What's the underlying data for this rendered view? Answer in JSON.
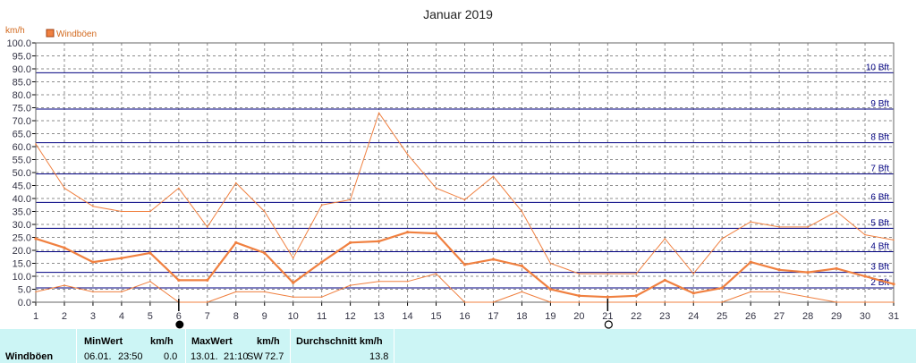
{
  "chart_data": {
    "type": "line",
    "title": "Januar 2019",
    "ylabel": "km/h",
    "ylim": [
      0,
      100
    ],
    "ytick_labels": [
      "0.0",
      "5.0",
      "10.0",
      "15.0",
      "20.0",
      "25.0",
      "30.0",
      "35.0",
      "40.0",
      "45.0",
      "50.0",
      "55.0",
      "60.0",
      "65.0",
      "70.0",
      "75.0",
      "80.0",
      "85.0",
      "90.0",
      "95.0",
      "100.0"
    ],
    "x": [
      1,
      2,
      3,
      4,
      5,
      6,
      7,
      8,
      9,
      10,
      11,
      12,
      13,
      14,
      15,
      16,
      17,
      18,
      19,
      20,
      21,
      22,
      23,
      24,
      25,
      26,
      27,
      28,
      29,
      30,
      31
    ],
    "xtick_labels": [
      "1",
      "2",
      "3",
      "4",
      "5",
      "6",
      "7",
      "8",
      "9",
      "10",
      "11",
      "12",
      "13",
      "14",
      "15",
      "16",
      "17",
      "18",
      "19",
      "20",
      "21",
      "22",
      "23",
      "24",
      "25",
      "26",
      "27",
      "28",
      "29",
      "30",
      "31"
    ],
    "legend": [
      "Windböen"
    ],
    "legend_position": "top-left",
    "grid": true,
    "series": [
      {
        "name": "Windböen",
        "role": "mean",
        "values": [
          24.5,
          21,
          15.5,
          17,
          19,
          8.5,
          8.5,
          23,
          19,
          7.5,
          15.5,
          23,
          23.5,
          27,
          26.5,
          14.5,
          16.5,
          14,
          5,
          2.5,
          2,
          2.5,
          8.5,
          3.5,
          5.5,
          15.5,
          12.5,
          11.5,
          13,
          10,
          7
        ]
      },
      {
        "name": "Windböen",
        "role": "max",
        "values": [
          61,
          44,
          37,
          35,
          35,
          44,
          29,
          46,
          35,
          17,
          37.5,
          39.5,
          73,
          57,
          44,
          39.5,
          48.5,
          35,
          15,
          11,
          11,
          11,
          24.5,
          11,
          24.5,
          31,
          29,
          29,
          35,
          26,
          24
        ]
      },
      {
        "name": "Windböen",
        "role": "min",
        "values": [
          4,
          6.5,
          4,
          4,
          8,
          0,
          0,
          4,
          4,
          2,
          2,
          6.5,
          8,
          8,
          11,
          0,
          0,
          4,
          0,
          0,
          0,
          0,
          0,
          0,
          0,
          4,
          4,
          2,
          0,
          0,
          0
        ]
      }
    ],
    "beaufort_lines": [
      {
        "label": "2 Bft",
        "value": 5.5
      },
      {
        "label": "3 Bft",
        "value": 11.5
      },
      {
        "label": "4 Bft",
        "value": 19.5
      },
      {
        "label": "5 Bft",
        "value": 28.5
      },
      {
        "label": "6 Bft",
        "value": 38.5
      },
      {
        "label": "7 Bft",
        "value": 49.5
      },
      {
        "label": "8 Bft",
        "value": 61.5
      },
      {
        "label": "9 Bft",
        "value": 74.5
      },
      {
        "label": "10 Bft",
        "value": 88.5
      }
    ],
    "moon_phases": [
      {
        "day": 6,
        "phase": "new"
      },
      {
        "day": 21,
        "phase": "full"
      }
    ]
  },
  "colors": {
    "series": "#f08040",
    "beaufort": "#000080",
    "grid": "#888888",
    "footer_bg": "#ccf5f5"
  },
  "footer": {
    "row_label": "Windböen",
    "min_header": "MinWert",
    "min_unit": "km/h",
    "min_date": "06.01.",
    "min_time": "23:50",
    "min_value": "0.0",
    "max_header": "MaxWert",
    "max_unit": "km/h",
    "max_date": "13.01.",
    "max_time": "21:10",
    "max_dir": "SW",
    "max_value": "72.7",
    "avg_header": "Durchschnitt km/h",
    "avg_value": "13.8"
  }
}
